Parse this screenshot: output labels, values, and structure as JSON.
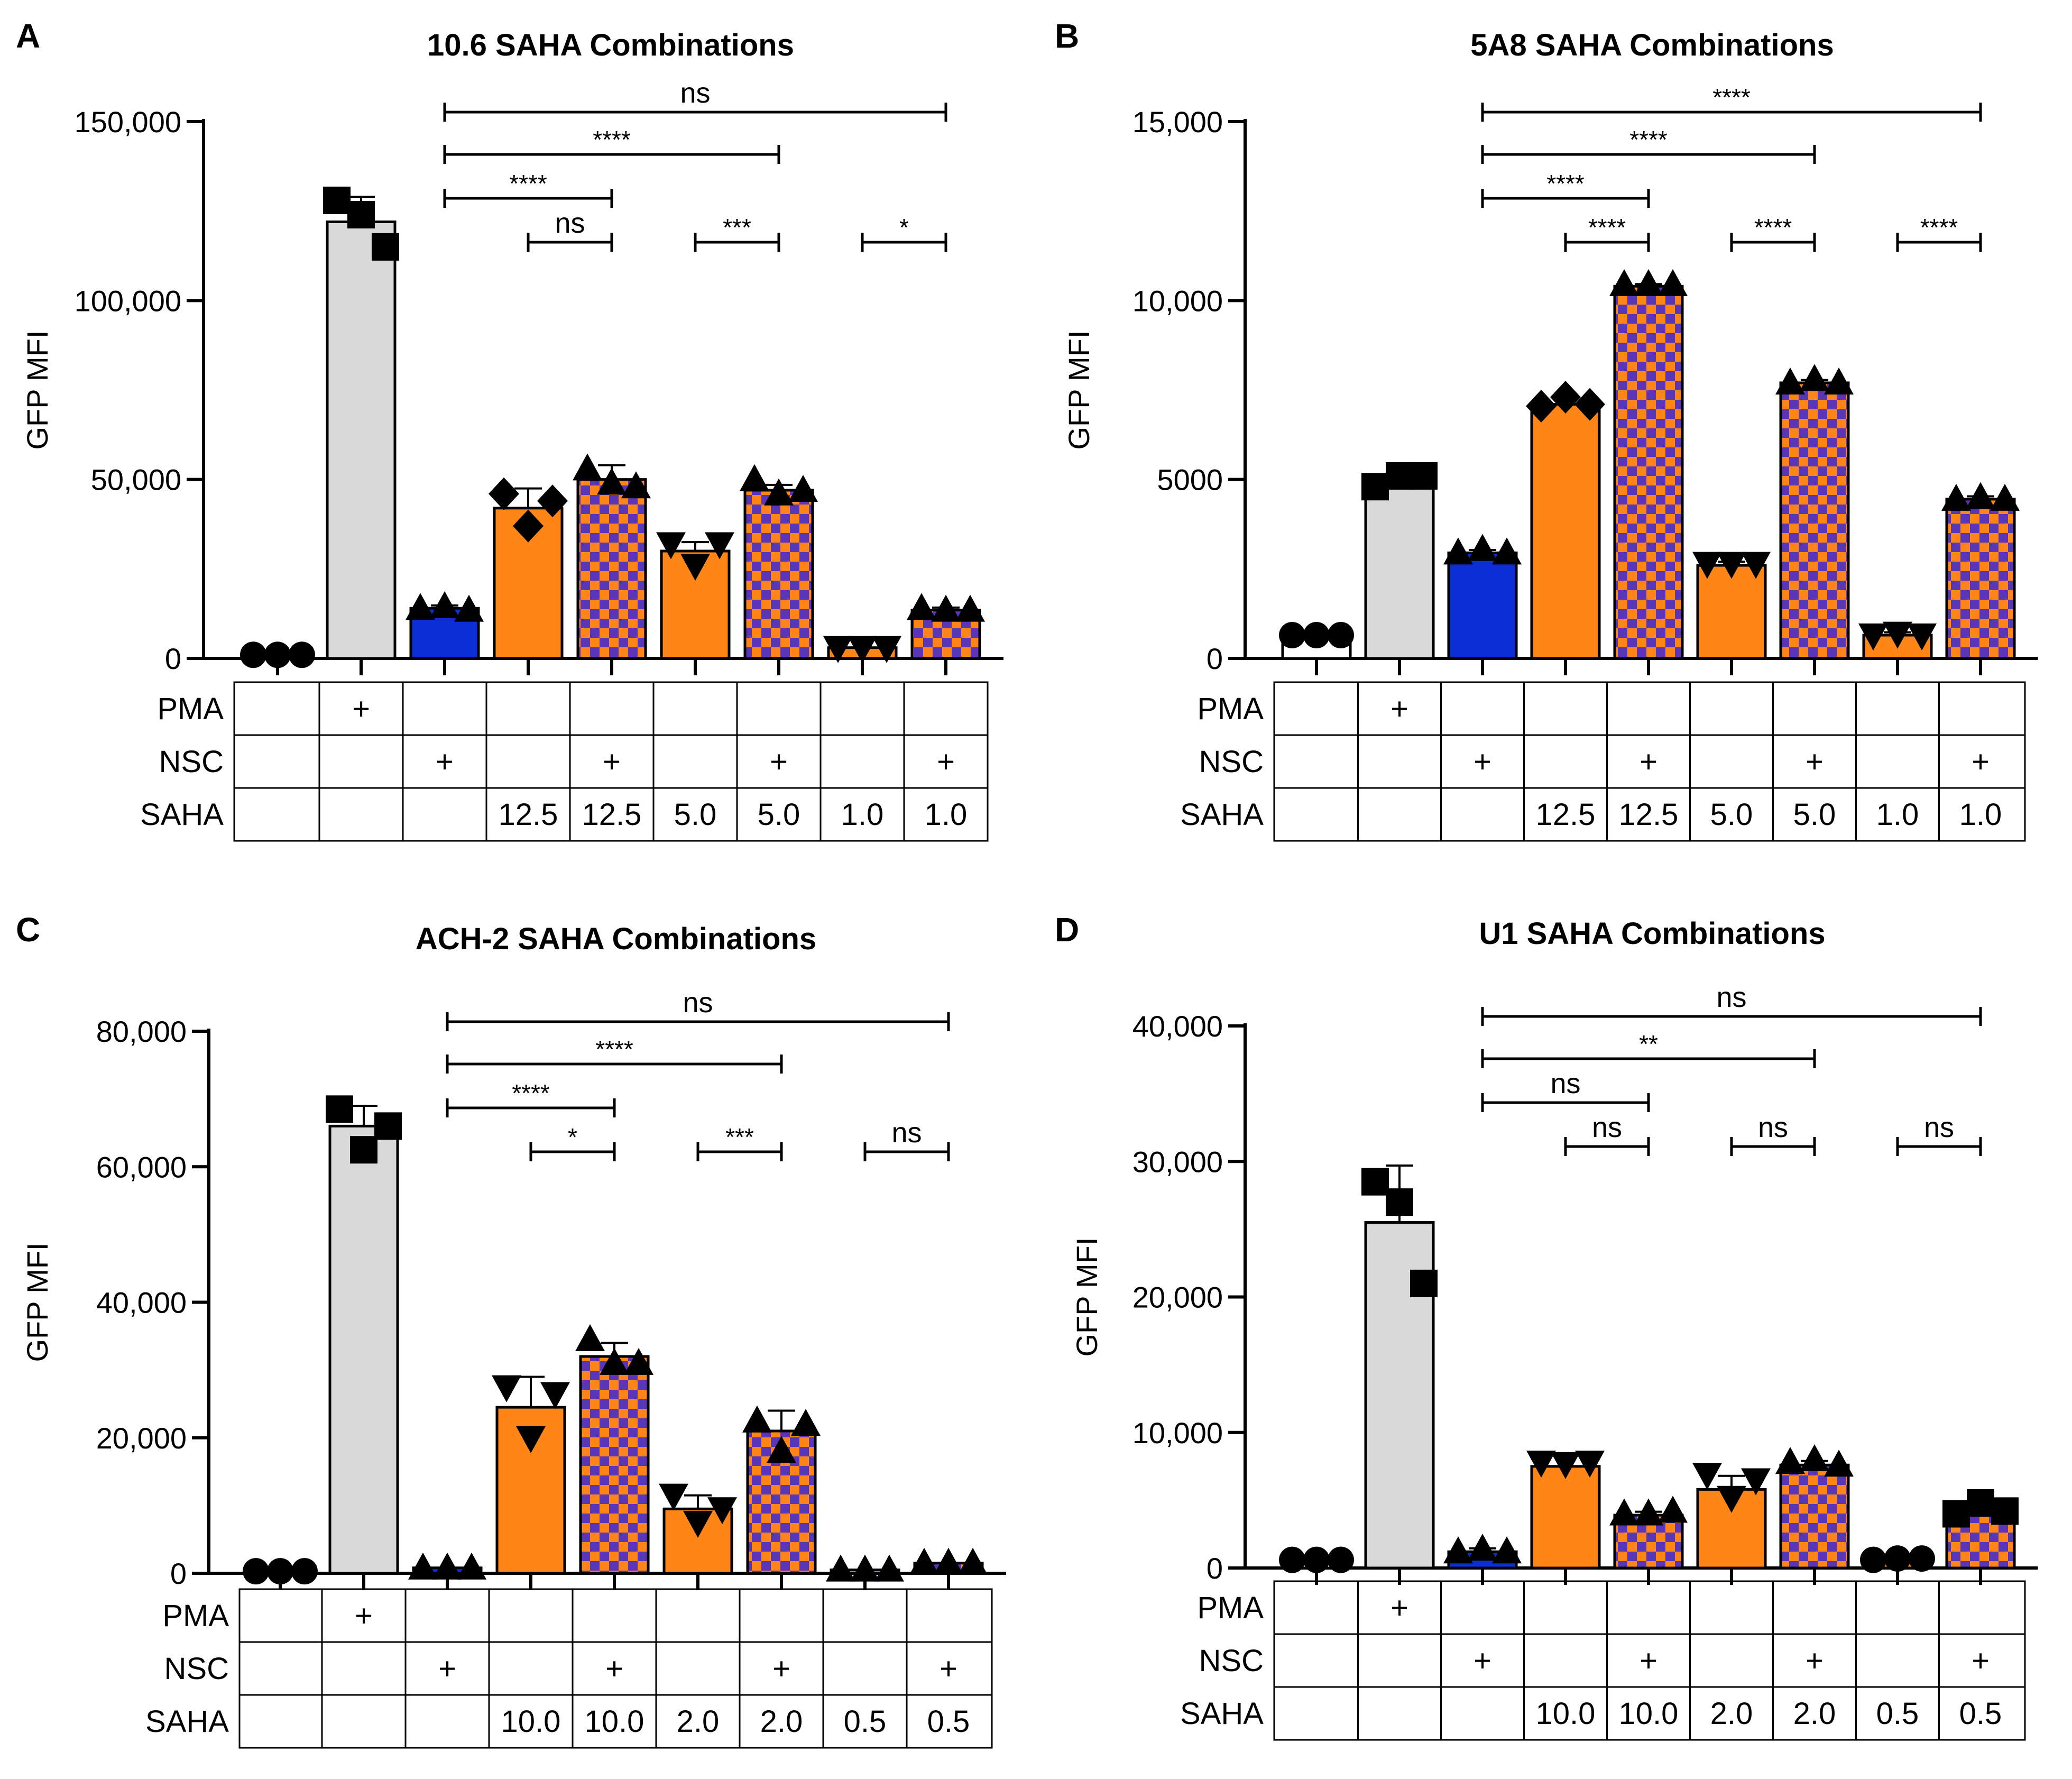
{
  "figure": {
    "colors": {
      "untreated": "#ffffff",
      "pma": "#d9d9d9",
      "nsc": "#0b2fd6",
      "saha": "#ff8616",
      "combo_a": "#ff8616",
      "combo_b": "#5a35b8",
      "text": "#000000"
    },
    "table_row_labels": [
      "PMA",
      "NSC",
      "SAHA"
    ],
    "plus_sign": "+"
  },
  "chart_data": [
    {
      "type": "bar",
      "panel": "A",
      "title": "10.6 SAHA Combinations",
      "ylabel": "GFP MFI",
      "xlabel": "",
      "ylim": [
        0,
        150000
      ],
      "yticks": [
        0,
        50000,
        100000,
        150000
      ],
      "ytick_labels": [
        "0",
        "50,000",
        "100,000",
        "150,000"
      ],
      "categories": [
        "Untreated",
        "PMA",
        "NSC",
        "SAHA 12.5",
        "NSC + SAHA 12.5",
        "SAHA 5.0",
        "NSC + SAHA 5.0",
        "SAHA 1.0",
        "NSC + SAHA 1.0"
      ],
      "fills": [
        "untreated",
        "pma",
        "nsc",
        "saha",
        "checker",
        "saha",
        "checker",
        "saha",
        "checker"
      ],
      "markers": [
        "circle",
        "square",
        "triangle-up",
        "diamond",
        "triangle-up",
        "triangle-down",
        "triangle-up",
        "triangle-down",
        "triangle-up"
      ],
      "values": [
        1000,
        122000,
        14000,
        42000,
        50000,
        30000,
        47000,
        3000,
        13500
      ],
      "errors": [
        0,
        7000,
        800,
        5500,
        4000,
        2500,
        1500,
        0,
        700
      ],
      "points": [
        [
          1000,
          1000,
          1000
        ],
        [
          128000,
          124000,
          115000
        ],
        [
          14000,
          14500,
          13500
        ],
        [
          46000,
          37000,
          44000
        ],
        [
          53000,
          49000,
          48000
        ],
        [
          32000,
          26000,
          32000
        ],
        [
          50000,
          46000,
          47000
        ],
        [
          3000,
          3000,
          3000
        ],
        [
          14000,
          13500,
          13500
        ]
      ],
      "table": {
        "PMA": [
          "",
          "+",
          "",
          "",
          "",
          "",
          "",
          "",
          ""
        ],
        "NSC": [
          "",
          "",
          "+",
          "",
          "+",
          "",
          "+",
          "",
          "+"
        ],
        "SAHA": [
          "",
          "",
          "",
          "12.5",
          "12.5",
          "5.0",
          "5.0",
          "1.0",
          "1.0"
        ]
      },
      "comparisons": [
        {
          "from": 2,
          "to": 8,
          "label": "ns",
          "level": 4
        },
        {
          "from": 2,
          "to": 6,
          "label": "****",
          "level": 3
        },
        {
          "from": 2,
          "to": 4,
          "label": "****",
          "level": 2
        },
        {
          "from": 3,
          "to": 4,
          "label": "ns",
          "level": 1
        },
        {
          "from": 5,
          "to": 6,
          "label": "***",
          "level": 1
        },
        {
          "from": 7,
          "to": 8,
          "label": "*",
          "level": 1
        }
      ]
    },
    {
      "type": "bar",
      "panel": "B",
      "title": "5A8 SAHA Combinations",
      "ylabel": "GFP MFI",
      "xlabel": "",
      "ylim": [
        0,
        15000
      ],
      "yticks": [
        0,
        5000,
        10000,
        15000
      ],
      "ytick_labels": [
        "0",
        "5000",
        "10,000",
        "15,000"
      ],
      "categories": [
        "Untreated",
        "PMA",
        "NSC",
        "SAHA 12.5",
        "NSC + SAHA 12.5",
        "SAHA 5.0",
        "NSC + SAHA 5.0",
        "SAHA 1.0",
        "NSC + SAHA 1.0"
      ],
      "fills": [
        "untreated",
        "pma",
        "nsc",
        "saha",
        "checker",
        "saha",
        "checker",
        "saha",
        "checker"
      ],
      "markers": [
        "circle",
        "square",
        "triangle-up",
        "diamond",
        "triangle-up",
        "triangle-down",
        "triangle-up",
        "triangle-down",
        "triangle-up"
      ],
      "values": [
        650,
        4950,
        2950,
        7100,
        10400,
        2600,
        7700,
        650,
        4450
      ],
      "errors": [
        0,
        200,
        80,
        200,
        60,
        100,
        80,
        80,
        80
      ],
      "points": [
        [
          650,
          650,
          650
        ],
        [
          4800,
          5100,
          5100
        ],
        [
          2950,
          3050,
          2950
        ],
        [
          7050,
          7300,
          7100
        ],
        [
          10450,
          10450,
          10450
        ],
        [
          2650,
          2650,
          2650
        ],
        [
          7700,
          7800,
          7700
        ],
        [
          650,
          700,
          650
        ],
        [
          4450,
          4500,
          4450
        ]
      ],
      "table": {
        "PMA": [
          "",
          "+",
          "",
          "",
          "",
          "",
          "",
          "",
          ""
        ],
        "NSC": [
          "",
          "",
          "+",
          "",
          "+",
          "",
          "+",
          "",
          "+"
        ],
        "SAHA": [
          "",
          "",
          "",
          "12.5",
          "12.5",
          "5.0",
          "5.0",
          "1.0",
          "1.0"
        ]
      },
      "comparisons": [
        {
          "from": 2,
          "to": 8,
          "label": "****",
          "level": 4
        },
        {
          "from": 2,
          "to": 6,
          "label": "****",
          "level": 3
        },
        {
          "from": 2,
          "to": 4,
          "label": "****",
          "level": 2
        },
        {
          "from": 3,
          "to": 4,
          "label": "****",
          "level": 1
        },
        {
          "from": 5,
          "to": 6,
          "label": "****",
          "level": 1
        },
        {
          "from": 7,
          "to": 8,
          "label": "****",
          "level": 1
        }
      ]
    },
    {
      "type": "bar",
      "panel": "C",
      "title": "ACH-2 SAHA Combinations",
      "ylabel": "GFP MFI",
      "xlabel": "",
      "ylim": [
        0,
        80000
      ],
      "yticks": [
        0,
        20000,
        40000,
        60000,
        80000
      ],
      "ytick_labels": [
        "0",
        "20,000",
        "40,000",
        "60,000",
        "80,000"
      ],
      "categories": [
        "Untreated",
        "PMA",
        "NSC",
        "SAHA 10.0",
        "NSC + SAHA 10.0",
        "SAHA 2.0",
        "NSC + SAHA 2.0",
        "SAHA 0.5",
        "NSC + SAHA 0.5"
      ],
      "fills": [
        "untreated",
        "pma",
        "nsc",
        "saha",
        "checker",
        "saha",
        "checker",
        "saha",
        "checker"
      ],
      "markers": [
        "circle",
        "square",
        "triangle-up",
        "triangle-down",
        "triangle-up",
        "triangle-down",
        "triangle-up",
        "triangle-up",
        "triangle-up"
      ],
      "values": [
        300,
        66000,
        800,
        24500,
        32000,
        9500,
        21000,
        500,
        1500
      ],
      "errors": [
        0,
        3000,
        0,
        4500,
        2000,
        2000,
        3000,
        0,
        0
      ],
      "points": [
        [
          300,
          300,
          300
        ],
        [
          68500,
          62500,
          66000
        ],
        [
          800,
          800,
          800
        ],
        [
          27500,
          20000,
          26500
        ],
        [
          34500,
          31000,
          31000
        ],
        [
          11500,
          7500,
          9500
        ],
        [
          22500,
          18000,
          22000
        ],
        [
          500,
          500,
          500
        ],
        [
          1500,
          1500,
          1500
        ]
      ],
      "table": {
        "PMA": [
          "",
          "+",
          "",
          "",
          "",
          "",
          "",
          "",
          ""
        ],
        "NSC": [
          "",
          "",
          "+",
          "",
          "+",
          "",
          "+",
          "",
          "+"
        ],
        "SAHA": [
          "",
          "",
          "",
          "10.0",
          "10.0",
          "2.0",
          "2.0",
          "0.5",
          "0.5"
        ]
      },
      "comparisons": [
        {
          "from": 2,
          "to": 8,
          "label": "ns",
          "level": 4
        },
        {
          "from": 2,
          "to": 6,
          "label": "****",
          "level": 3
        },
        {
          "from": 2,
          "to": 4,
          "label": "****",
          "level": 2
        },
        {
          "from": 3,
          "to": 4,
          "label": "*",
          "level": 1
        },
        {
          "from": 5,
          "to": 6,
          "label": "***",
          "level": 1
        },
        {
          "from": 7,
          "to": 8,
          "label": "ns",
          "level": 1
        }
      ]
    },
    {
      "type": "bar",
      "panel": "D",
      "title": "U1 SAHA Combinations",
      "ylabel": "GFP MFI",
      "xlabel": "",
      "ylim": [
        0,
        40000
      ],
      "yticks": [
        0,
        10000,
        20000,
        30000,
        40000
      ],
      "ytick_labels": [
        "0",
        "10,000",
        "20,000",
        "30,000",
        "40,000"
      ],
      "categories": [
        "Untreated",
        "PMA",
        "NSC",
        "SAHA 10.0",
        "NSC + SAHA 10.0",
        "SAHA 2.0",
        "NSC + SAHA 2.0",
        "SAHA 0.5",
        "NSC + SAHA 0.5"
      ],
      "fills": [
        "untreated",
        "pma",
        "nsc",
        "saha",
        "checker",
        "saha",
        "checker",
        "saha",
        "checker"
      ],
      "markers": [
        "circle",
        "square",
        "triangle-up",
        "triangle-down",
        "triangle-up",
        "triangle-down",
        "triangle-up",
        "circle",
        "square"
      ],
      "values": [
        600,
        25500,
        1200,
        7500,
        3900,
        5800,
        7600,
        700,
        4200
      ],
      "errors": [
        0,
        4200,
        250,
        800,
        250,
        1000,
        300,
        0,
        250
      ],
      "points": [
        [
          600,
          600,
          600
        ],
        [
          28500,
          27000,
          21000
        ],
        [
          1200,
          1400,
          1200
        ],
        [
          7800,
          7700,
          7800
        ],
        [
          4000,
          4000,
          4200
        ],
        [
          6900,
          5200,
          6500
        ],
        [
          7800,
          8000,
          7600
        ],
        [
          600,
          700,
          700
        ],
        [
          4000,
          4800,
          4200
        ]
      ],
      "table": {
        "PMA": [
          "",
          "+",
          "",
          "",
          "",
          "",
          "",
          "",
          ""
        ],
        "NSC": [
          "",
          "",
          "+",
          "",
          "+",
          "",
          "+",
          "",
          "+"
        ],
        "SAHA": [
          "",
          "",
          "",
          "10.0",
          "10.0",
          "2.0",
          "2.0",
          "0.5",
          "0.5"
        ]
      },
      "comparisons": [
        {
          "from": 2,
          "to": 8,
          "label": "ns",
          "level": 4
        },
        {
          "from": 2,
          "to": 6,
          "label": "**",
          "level": 3
        },
        {
          "from": 2,
          "to": 4,
          "label": "ns",
          "level": 2
        },
        {
          "from": 3,
          "to": 4,
          "label": "ns",
          "level": 1
        },
        {
          "from": 5,
          "to": 6,
          "label": "ns",
          "level": 1
        },
        {
          "from": 7,
          "to": 8,
          "label": "ns",
          "level": 1
        }
      ]
    }
  ]
}
